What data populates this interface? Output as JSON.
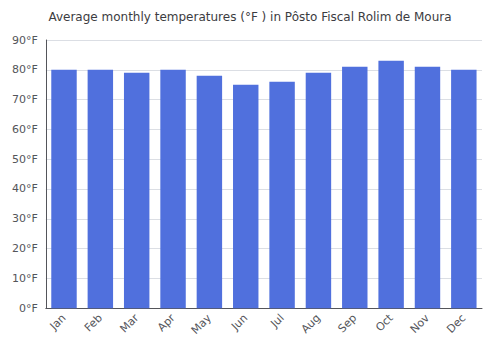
{
  "chart_data": {
    "type": "bar",
    "title": "Average monthly temperatures (°F ) in Pôsto Fiscal Rolim de Moura",
    "categories": [
      "Jan",
      "Feb",
      "Mar",
      "Apr",
      "May",
      "Jun",
      "Jul",
      "Aug",
      "Sep",
      "Oct",
      "Nov",
      "Dec"
    ],
    "values": [
      80,
      80,
      79,
      80,
      78,
      75,
      76,
      79,
      81,
      83,
      81,
      80
    ],
    "ylim": [
      0,
      90
    ],
    "yticks": [
      {
        "value": 0,
        "label": "0°F"
      },
      {
        "value": 10,
        "label": "10°F"
      },
      {
        "value": 20,
        "label": "20°F"
      },
      {
        "value": 30,
        "label": "30°F"
      },
      {
        "value": 40,
        "label": "40°F"
      },
      {
        "value": 50,
        "label": "50°F"
      },
      {
        "value": 60,
        "label": "60°F"
      },
      {
        "value": 70,
        "label": "70°F"
      },
      {
        "value": 80,
        "label": "80°F"
      },
      {
        "value": 90,
        "label": "90°F"
      }
    ],
    "grid": true
  }
}
